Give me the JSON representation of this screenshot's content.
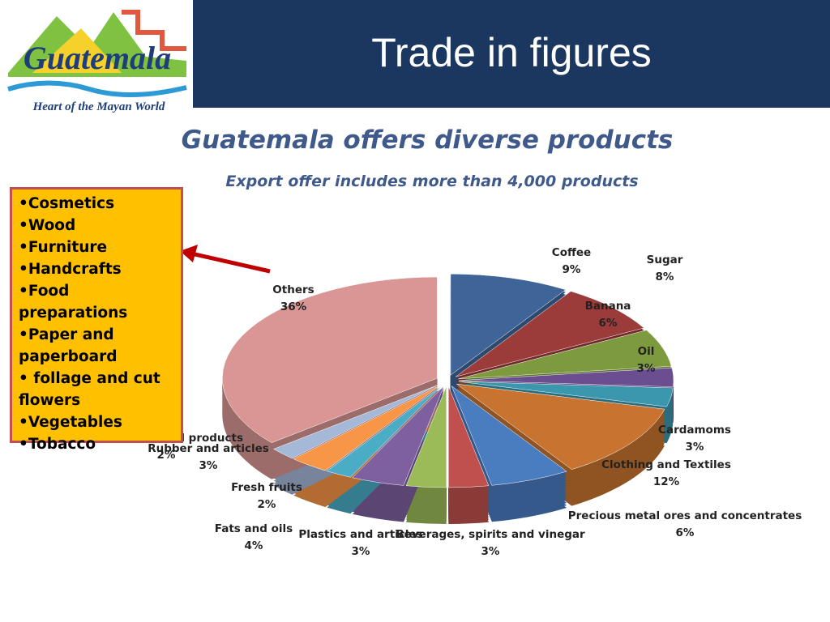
{
  "header": {
    "title": "Trade in figures",
    "logo_text": "Guatemala",
    "logo_tagline": "Heart of the Mayan World"
  },
  "subtitle": "Guatemala offers diverse products",
  "note": "Export offer includes more than 4,000 products",
  "bullets": [
    "•Cosmetics",
    "•Wood",
    "•Furniture",
    "•Handcrafts",
    "•Food preparations",
    "•Paper and paperboard",
    "• follage and cut flowers",
    "•Vegetables",
    "•Tobacco"
  ],
  "chart_data": {
    "type": "pie",
    "categories": [
      "Coffee",
      "Sugar",
      "Banana",
      "Oil",
      "Cardamoms",
      "Clothing and Textiles",
      "Precious metal ores and concentrates",
      "Beverages, spirits and vinegar",
      "Plastics and articles",
      "Fats and oils",
      "Fresh fruits",
      "Rubber and articles",
      "Pharmaceutical products",
      "Others"
    ],
    "values": [
      9,
      8,
      6,
      3,
      3,
      12,
      6,
      3,
      3,
      4,
      2,
      3,
      2,
      36
    ],
    "value_labels": [
      "9%",
      "8%",
      "6%",
      "3%",
      "3%",
      "12%",
      "6%",
      "3%",
      "3%",
      "4%",
      "2%",
      "3%",
      "2%",
      "36%"
    ],
    "colors": [
      "#3f6598",
      "#9b3b3a",
      "#7d9a3e",
      "#6a4e8f",
      "#3a97ad",
      "#c8732f",
      "#4a7cc0",
      "#c0504d",
      "#9bbb59",
      "#7e60a0",
      "#4bacc6",
      "#f79646",
      "#a5b8d8",
      "#d99694"
    ]
  }
}
